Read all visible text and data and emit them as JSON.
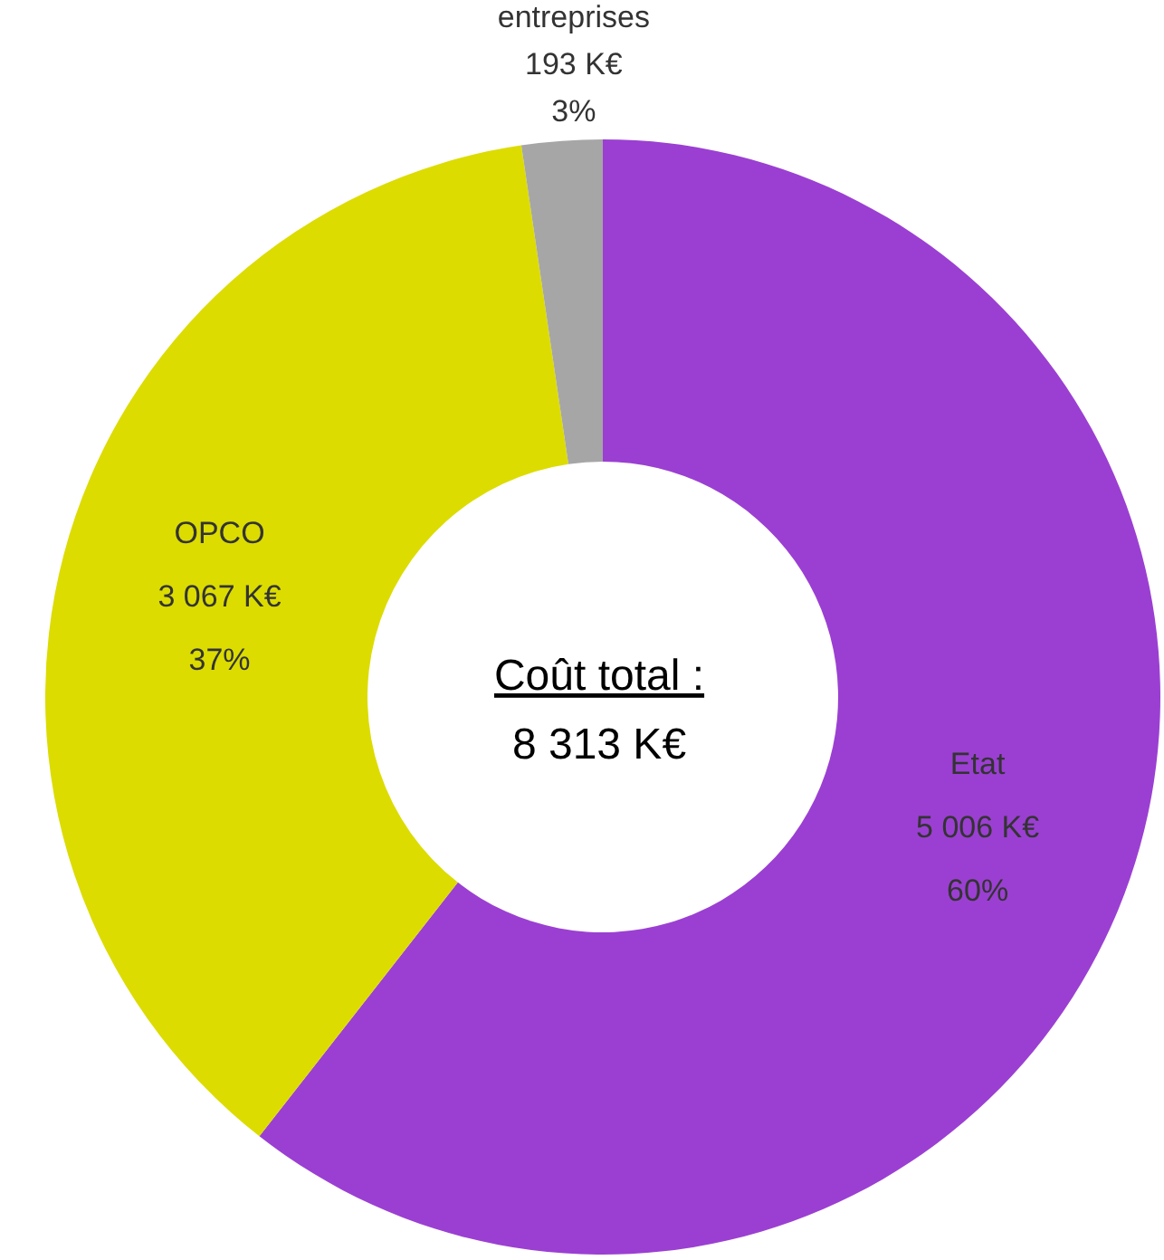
{
  "chart_data": {
    "type": "donut",
    "categories": [
      "Etat",
      "OPCO",
      "entreprises"
    ],
    "values": [
      5006,
      3067,
      193
    ],
    "colors": [
      "#9b3fd2",
      "#dcdc00",
      "#a6a6a6"
    ],
    "value_labels": [
      "5 006 K€\n60%",
      "3 067 K€\n37%",
      "193 K€\n3%"
    ],
    "annotations": [
      "Coût total :",
      "8 313 K€"
    ],
    "legend": false
  }
}
